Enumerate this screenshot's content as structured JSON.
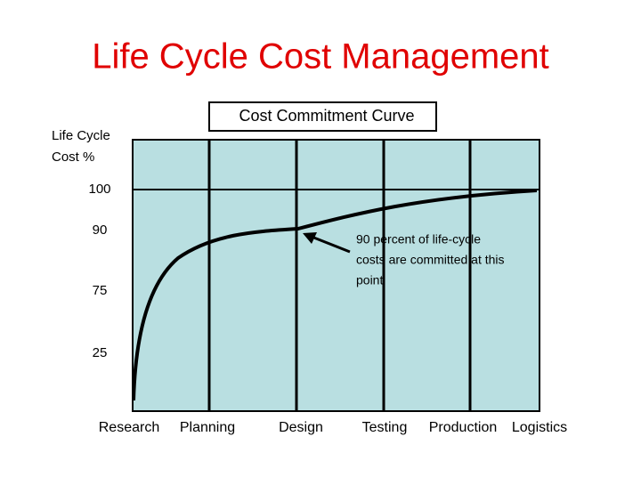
{
  "title": "Life Cycle Cost Management",
  "chart": {
    "title": "Cost Commitment   Curve",
    "y_label": [
      "Life Cycle",
      "Cost %"
    ],
    "y_ticks": [
      100,
      90,
      75,
      25
    ],
    "phases": [
      "Research",
      "Planning",
      "Design",
      "Testing",
      "Production",
      "Logistics"
    ],
    "annotation": [
      "90 percent of life-cycle",
      "costs are committed at this",
      "point"
    ]
  }
}
